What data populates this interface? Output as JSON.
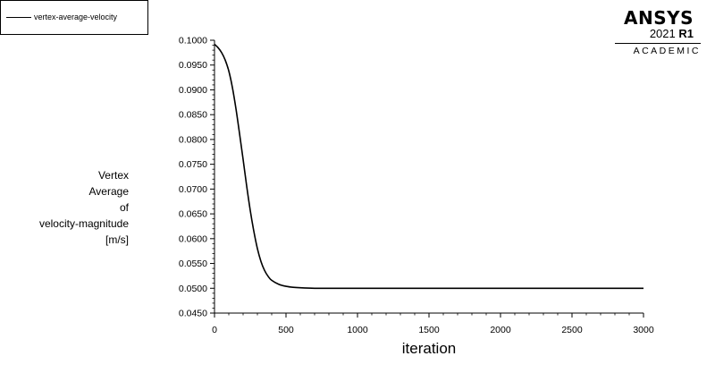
{
  "legend": {
    "entries": [
      {
        "label": "vertex-average-velocity",
        "color": "#000000"
      }
    ]
  },
  "logo": {
    "brand": "ANSYS",
    "version": "2021",
    "release": "R1",
    "edition": "ACADEMIC"
  },
  "chart_data": {
    "type": "line",
    "title": "",
    "xlabel": "iteration",
    "ylabel_lines": [
      "Vertex",
      "Average",
      "of",
      "velocity-magnitude",
      "[m/s]"
    ],
    "xlim": [
      0,
      3000
    ],
    "ylim": [
      0.045,
      0.1
    ],
    "x_ticks": [
      0,
      500,
      1000,
      1500,
      2000,
      2500,
      3000
    ],
    "x_tick_labels": [
      "0",
      "500",
      "1000",
      "1500",
      "2000",
      "2500",
      "3000"
    ],
    "y_ticks": [
      0.045,
      0.05,
      0.055,
      0.06,
      0.065,
      0.07,
      0.075,
      0.08,
      0.085,
      0.09,
      0.095,
      0.1
    ],
    "y_tick_labels": [
      "0.0450",
      "0.0500",
      "0.0550",
      "0.0600",
      "0.0650",
      "0.0700",
      "0.0750",
      "0.0800",
      "0.0850",
      "0.0900",
      "0.0950",
      "0.1000"
    ],
    "grid": false,
    "legend_position": "top-left",
    "series": [
      {
        "name": "vertex-average-velocity",
        "color": "#000000",
        "x": [
          0,
          25,
          50,
          75,
          100,
          125,
          150,
          175,
          200,
          225,
          250,
          275,
          300,
          325,
          350,
          375,
          400,
          450,
          500,
          550,
          600,
          700,
          800,
          1000,
          1500,
          2000,
          2500,
          3000
        ],
        "y": [
          0.0992,
          0.0985,
          0.0975,
          0.096,
          0.0938,
          0.0905,
          0.0862,
          0.0812,
          0.076,
          0.0706,
          0.0657,
          0.0615,
          0.058,
          0.0554,
          0.0536,
          0.0524,
          0.0516,
          0.0508,
          0.0504,
          0.0502,
          0.0501,
          0.05,
          0.05,
          0.05,
          0.05,
          0.05,
          0.05,
          0.05
        ]
      }
    ]
  }
}
